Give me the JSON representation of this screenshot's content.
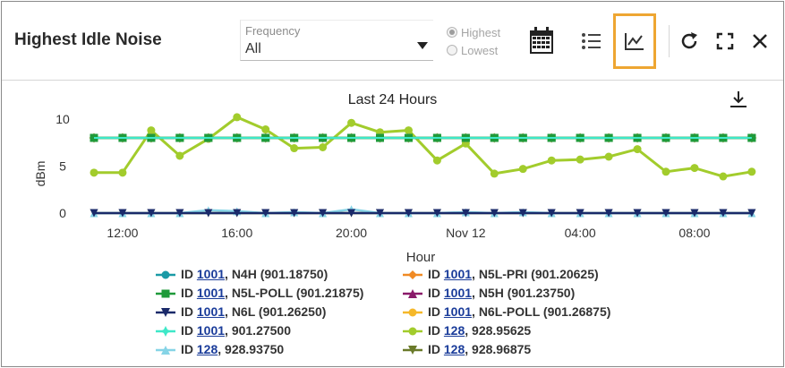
{
  "header": {
    "title": "Highest Idle Noise",
    "frequency_label": "Frequency",
    "frequency_value": "All",
    "radio_highest": "Highest",
    "radio_lowest": "Lowest",
    "selected_radio": "Highest",
    "icons": [
      "calendar-icon",
      "list-view-icon",
      "chart-view-icon",
      "refresh-icon",
      "fullscreen-icon",
      "close-icon"
    ]
  },
  "chart_data": {
    "type": "line",
    "title": "Last 24 Hours",
    "xlabel": "Hour",
    "ylabel": "dBm",
    "ylim": [
      0,
      10
    ],
    "yticks": [
      "0",
      "5",
      "10"
    ],
    "xtick_labels": [
      "12:00",
      "16:00",
      "20:00",
      "Nov 12",
      "04:00",
      "08:00"
    ],
    "x": [
      "11:00",
      "12:00",
      "13:00",
      "14:00",
      "15:00",
      "16:00",
      "17:00",
      "18:00",
      "19:00",
      "20:00",
      "21:00",
      "22:00",
      "23:00",
      "00:00",
      "01:00",
      "02:00",
      "03:00",
      "04:00",
      "05:00",
      "06:00",
      "07:00",
      "08:00",
      "09:00",
      "10:00"
    ],
    "grid": false,
    "legend_position": "bottom",
    "series": [
      {
        "id": "1001",
        "name": "N4H (901.18750)",
        "color": "#1a9aa6",
        "marker": "circle",
        "values": [
          8,
          8,
          8,
          8,
          8,
          8,
          8,
          8,
          8,
          8,
          8,
          8,
          8,
          8,
          8,
          8,
          8,
          8,
          8,
          8,
          8,
          8,
          8,
          8
        ]
      },
      {
        "id": "1001",
        "name": "N5L-PRI (901.20625)",
        "color": "#f08a24",
        "marker": "diamond",
        "values": [
          8,
          8,
          8,
          8,
          8,
          8,
          8,
          8,
          8,
          8,
          8,
          8,
          8,
          8,
          8,
          8,
          8,
          8,
          8,
          8,
          8,
          8,
          8,
          8
        ]
      },
      {
        "id": "1001",
        "name": "N5L-POLL (901.21875)",
        "color": "#1f9a3a",
        "marker": "square",
        "values": [
          8,
          8,
          8,
          8,
          8,
          8,
          8,
          8,
          8,
          8,
          8,
          8,
          8,
          8,
          8,
          8,
          8,
          8,
          8,
          8,
          8,
          8,
          8,
          8
        ]
      },
      {
        "id": "1001",
        "name": "N5H (901.23750)",
        "color": "#8a1a6a",
        "marker": "triangle-up",
        "values": [
          8,
          8,
          8,
          8,
          8,
          8,
          8,
          8,
          8,
          8,
          8,
          8,
          8,
          8,
          8,
          8,
          8,
          8,
          8,
          8,
          8,
          8,
          8,
          8
        ]
      },
      {
        "id": "1001",
        "name": "N6L (901.26250)",
        "color": "#1a2a6a",
        "marker": "triangle-down",
        "values": [
          0,
          0,
          0,
          0,
          0,
          0,
          0,
          0,
          0,
          0,
          0,
          0,
          0,
          0,
          0,
          0,
          0,
          0,
          0,
          0,
          0,
          0,
          0,
          0
        ]
      },
      {
        "id": "1001",
        "name": "N6L-POLL (901.26875)",
        "color": "#f5b82a",
        "marker": "circle",
        "values": [
          8,
          8,
          8,
          8,
          8,
          8,
          8,
          8,
          8,
          8,
          8,
          8,
          8,
          8,
          8,
          8,
          8,
          8,
          8,
          8,
          8,
          8,
          8,
          8
        ]
      },
      {
        "id": "1001",
        "name": "901.27500",
        "color": "#3ee8c8",
        "marker": "star",
        "values": [
          8,
          8,
          8,
          8,
          8,
          8,
          8,
          8,
          8,
          8,
          8,
          8,
          8,
          8,
          8,
          8,
          8,
          8,
          8,
          8,
          8,
          8,
          8,
          8
        ]
      },
      {
        "id": "128",
        "name": "928.95625",
        "color": "#a2cc2c",
        "marker": "circle",
        "values": [
          4.3,
          4.3,
          8.8,
          6.1,
          7.9,
          10.2,
          8.9,
          6.9,
          7.0,
          9.6,
          8.6,
          8.8,
          5.6,
          7.4,
          4.2,
          4.7,
          5.6,
          5.7,
          6.0,
          6.8,
          4.4,
          4.8,
          3.9,
          4.4
        ]
      },
      {
        "id": "128",
        "name": "928.93750",
        "color": "#86d4e6",
        "marker": "triangle-up",
        "values": [
          0,
          0,
          0,
          0,
          0.3,
          0.2,
          0,
          0.1,
          0,
          0.4,
          0,
          0,
          0,
          0.1,
          0,
          0.1,
          0,
          0,
          0,
          0,
          0,
          0,
          0,
          0
        ]
      },
      {
        "id": "128",
        "name": "928.96875",
        "color": "#6a7a2a",
        "marker": "triangle-down",
        "values": [
          0,
          0,
          0,
          0,
          0,
          0,
          0,
          0,
          0,
          0,
          0,
          0,
          0,
          0,
          0,
          0,
          0,
          0,
          0,
          0,
          0,
          0,
          0,
          0
        ]
      }
    ]
  }
}
